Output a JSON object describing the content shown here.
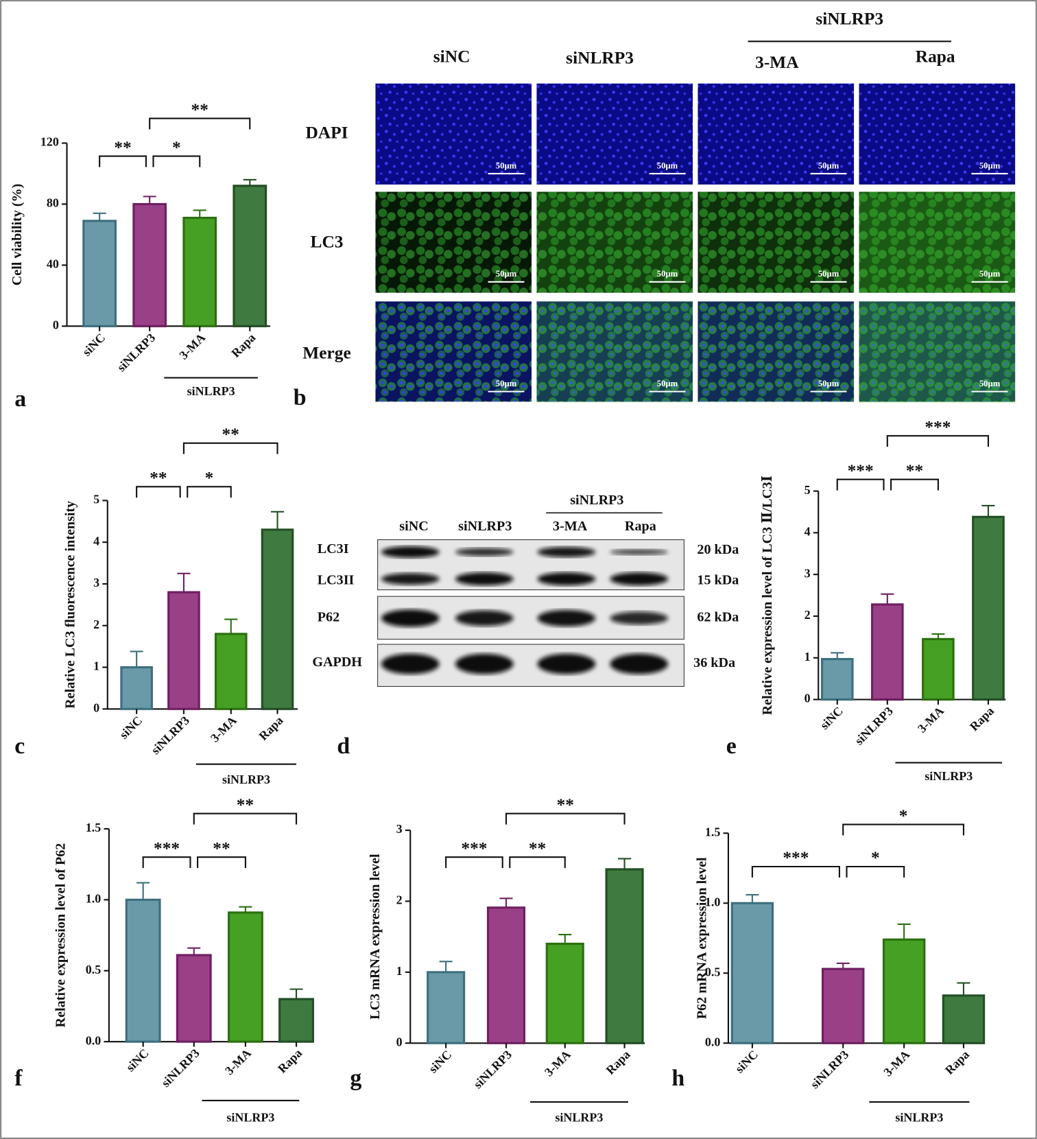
{
  "chart_data": [
    {
      "type": "bar",
      "letter": "a",
      "y_label": "Cell viability (%)",
      "categories": [
        "siNC",
        "siNLRP3",
        "3-MA",
        "Rapa"
      ],
      "group_label": "siNLRP3",
      "values": [
        69,
        80,
        71,
        92
      ],
      "errors": [
        5,
        5,
        5,
        4
      ],
      "colors": [
        "#6a9aa8",
        "#9a4087",
        "#46a024",
        "#3f7a40"
      ],
      "edge_colors": [
        "#3d6f7e",
        "#6e2060",
        "#2c7010",
        "#234f25"
      ],
      "ylim": [
        0,
        120
      ],
      "yticks": [
        0,
        40,
        80,
        120
      ],
      "comparisons": [
        {
          "pair": [
            "siNC",
            "siNLRP3"
          ],
          "label": "**"
        },
        {
          "pair": [
            "siNLRP3",
            "3-MA"
          ],
          "label": "*"
        },
        {
          "pair": [
            "siNLRP3",
            "Rapa"
          ],
          "label": "**"
        }
      ]
    },
    {
      "type": "bar",
      "letter": "c",
      "y_label": "Relative LC3 fluorescence intensity",
      "categories": [
        "siNC",
        "siNLRP3",
        "3-MA",
        "Rapa"
      ],
      "group_label": "siNLRP3",
      "values": [
        1.0,
        2.8,
        1.8,
        4.3
      ],
      "errors": [
        0.38,
        0.45,
        0.35,
        0.43
      ],
      "colors": [
        "#6a9aa8",
        "#9a4087",
        "#46a024",
        "#3f7a40"
      ],
      "edge_colors": [
        "#3d6f7e",
        "#6e2060",
        "#2c7010",
        "#234f25"
      ],
      "ylim": [
        0,
        5
      ],
      "yticks": [
        0,
        1,
        2,
        3,
        4,
        5
      ],
      "comparisons": [
        {
          "pair": [
            "siNC",
            "siNLRP3"
          ],
          "label": "**"
        },
        {
          "pair": [
            "siNLRP3",
            "3-MA"
          ],
          "label": "*"
        },
        {
          "pair": [
            "siNLRP3",
            "Rapa"
          ],
          "label": "**"
        }
      ]
    },
    {
      "type": "bar",
      "letter": "e",
      "y_label": "Relative expression level of LC3 Ⅱ/LC3Ⅰ",
      "categories": [
        "siNC",
        "siNLRP3",
        "3-MA",
        "Rapa"
      ],
      "group_label": "siNLRP3",
      "values": [
        0.97,
        2.28,
        1.45,
        4.38
      ],
      "errors": [
        0.15,
        0.25,
        0.12,
        0.27
      ],
      "colors": [
        "#6a9aa8",
        "#9a4087",
        "#46a024",
        "#3f7a40"
      ],
      "edge_colors": [
        "#3d6f7e",
        "#6e2060",
        "#2c7010",
        "#234f25"
      ],
      "ylim": [
        0,
        5
      ],
      "yticks": [
        0,
        1,
        2,
        3,
        4,
        5
      ],
      "comparisons": [
        {
          "pair": [
            "siNC",
            "siNLRP3"
          ],
          "label": "***"
        },
        {
          "pair": [
            "siNLRP3",
            "3-MA"
          ],
          "label": "**"
        },
        {
          "pair": [
            "siNLRP3",
            "Rapa"
          ],
          "label": "***"
        }
      ]
    },
    {
      "type": "bar",
      "letter": "f",
      "y_label": "Relative expression level of P62",
      "categories": [
        "siNC",
        "siNLRP3",
        "3-MA",
        "Rapa"
      ],
      "group_label": "siNLRP3",
      "values": [
        1.0,
        0.61,
        0.91,
        0.3
      ],
      "errors": [
        0.12,
        0.05,
        0.04,
        0.07
      ],
      "colors": [
        "#6a9aa8",
        "#9a4087",
        "#46a024",
        "#3f7a40"
      ],
      "edge_colors": [
        "#3d6f7e",
        "#6e2060",
        "#2c7010",
        "#234f25"
      ],
      "ylim": [
        0,
        1.5
      ],
      "yticks": [
        {
          "value": 0,
          "label": "0.0"
        },
        {
          "value": 0.5,
          "label": "0.5"
        },
        {
          "value": 1,
          "label": "1.0"
        },
        {
          "value": 1.5,
          "label": "1.5"
        }
      ],
      "comparisons": [
        {
          "pair": [
            "siNC",
            "siNLRP3"
          ],
          "label": "***"
        },
        {
          "pair": [
            "siNLRP3",
            "3-MA"
          ],
          "label": "**"
        },
        {
          "pair": [
            "siNLRP3",
            "Rapa"
          ],
          "label": "**"
        }
      ]
    },
    {
      "type": "bar",
      "letter": "g",
      "y_label": "LC3 mRNA expression level",
      "categories": [
        "siNC",
        "siNLRP3",
        "3-MA",
        "Rapa"
      ],
      "group_label": "siNLRP3",
      "values": [
        1.0,
        1.91,
        1.4,
        2.45
      ],
      "errors": [
        0.15,
        0.13,
        0.13,
        0.15
      ],
      "colors": [
        "#6a9aa8",
        "#9a4087",
        "#46a024",
        "#3f7a40"
      ],
      "edge_colors": [
        "#3d6f7e",
        "#6e2060",
        "#2c7010",
        "#234f25"
      ],
      "ylim": [
        0,
        3
      ],
      "yticks": [
        0,
        1,
        2,
        3
      ],
      "comparisons": [
        {
          "pair": [
            "siNC",
            "siNLRP3"
          ],
          "label": "***"
        },
        {
          "pair": [
            "siNLRP3",
            "3-MA"
          ],
          "label": "**"
        },
        {
          "pair": [
            "siNLRP3",
            "Rapa"
          ],
          "label": "**"
        }
      ]
    },
    {
      "type": "bar",
      "letter": "h",
      "y_label": "P62 mRNA expression level",
      "categories": [
        "siNC",
        "siNLRP3",
        "3-MA",
        "Rapa"
      ],
      "group_label": "siNLRP3",
      "values": [
        1.0,
        0.53,
        0.74,
        0.34
      ],
      "errors": [
        0.06,
        0.04,
        0.11,
        0.09
      ],
      "colors": [
        "#6a9aa8",
        "#9a4087",
        "#46a024",
        "#3f7a40"
      ],
      "edge_colors": [
        "#3d6f7e",
        "#6e2060",
        "#2c7010",
        "#234f25"
      ],
      "ylim": [
        0,
        1.5
      ],
      "yticks": [
        {
          "value": 0,
          "label": "0.0"
        },
        {
          "value": 0.5,
          "label": "0.5"
        },
        {
          "value": 1,
          "label": "1.0"
        },
        {
          "value": 1.5,
          "label": "1.5"
        }
      ],
      "comparisons": [
        {
          "pair": [
            "siNC",
            "siNLRP3"
          ],
          "label": "***"
        },
        {
          "pair": [
            "siNLRP3",
            "3-MA"
          ],
          "label": "*"
        },
        {
          "pair": [
            "siNLRP3",
            "Rapa"
          ],
          "label": "*"
        }
      ]
    }
  ],
  "panel_b": {
    "letter": "b",
    "group": "siNLRP3",
    "columns": [
      "siNC",
      "siNLRP3",
      "3-MA",
      "Rapa"
    ],
    "rows": [
      "DAPI",
      "LC3",
      "Merge"
    ],
    "scale_bar": "50μm"
  },
  "panel_d": {
    "letter": "d",
    "group": "siNLRP3",
    "lanes": [
      "siNC",
      "siNLRP3",
      "3-MA",
      "Rapa"
    ],
    "bands": [
      "LC3I",
      "LC3II",
      "P62",
      "GAPDH"
    ],
    "sizes": [
      "20 kDa",
      "15 kDa",
      "62 kDa",
      "36 kDa"
    ]
  }
}
